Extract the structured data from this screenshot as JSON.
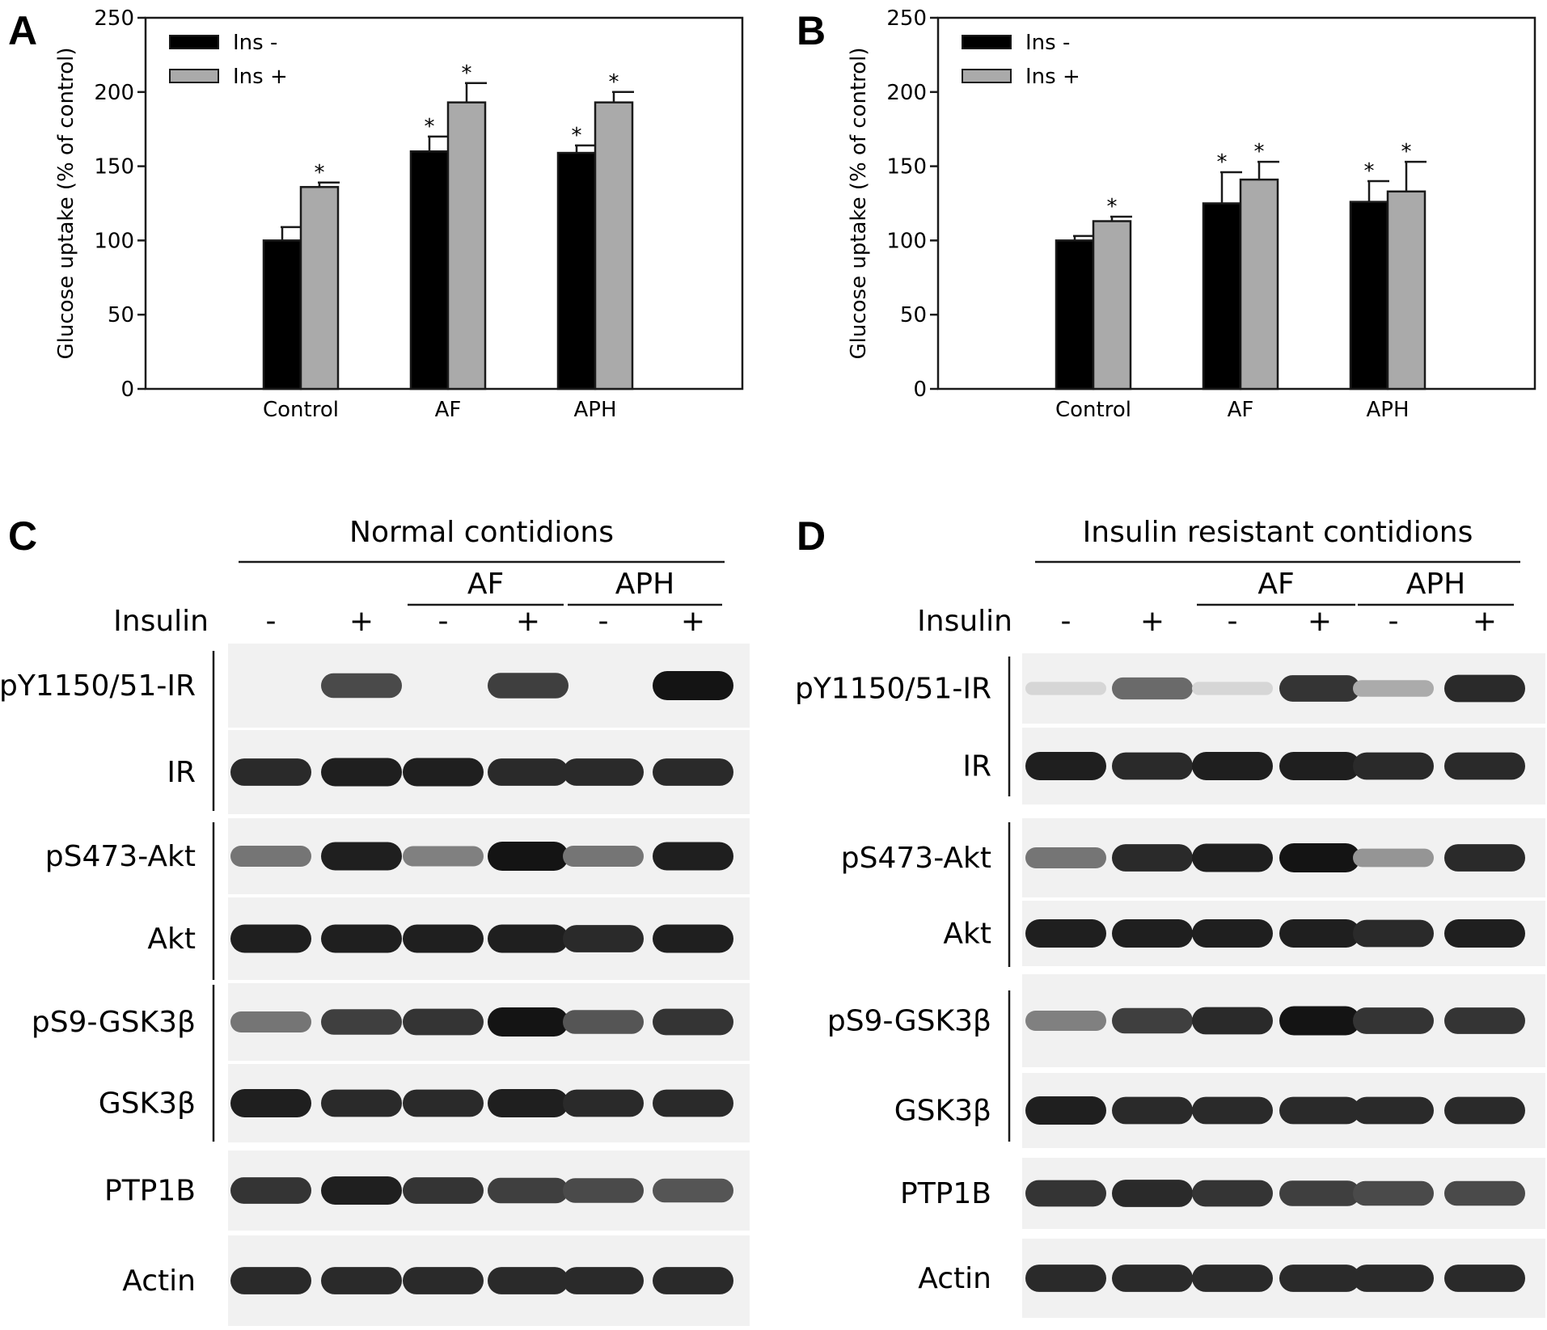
{
  "chart_data": [
    {
      "panel": "A",
      "type": "bar",
      "ylabel": "Glucose uptake (% of control)",
      "ylim": [
        0,
        250
      ],
      "yticks": [
        0,
        50,
        100,
        150,
        200,
        250
      ],
      "categories": [
        "Control",
        "AF",
        "APH"
      ],
      "series": [
        {
          "name": "Ins -",
          "color": "#000000",
          "values": [
            100,
            160,
            159
          ],
          "errors": [
            9,
            10,
            5
          ],
          "significant": [
            false,
            true,
            true
          ]
        },
        {
          "name": "Ins +",
          "color": "#aaaaaa",
          "values": [
            136,
            193,
            193
          ],
          "errors": [
            3,
            13,
            7
          ],
          "significant": [
            true,
            true,
            true
          ]
        }
      ],
      "legend": "top-left",
      "grid": false
    },
    {
      "panel": "B",
      "type": "bar",
      "ylabel": "Glucose uptake (% of control)",
      "ylim": [
        0,
        250
      ],
      "yticks": [
        0,
        50,
        100,
        150,
        200,
        250
      ],
      "categories": [
        "Control",
        "AF",
        "APH"
      ],
      "series": [
        {
          "name": "Ins -",
          "color": "#000000",
          "values": [
            100,
            125,
            126
          ],
          "errors": [
            3,
            21,
            14
          ],
          "significant": [
            false,
            true,
            true
          ]
        },
        {
          "name": "Ins +",
          "color": "#aaaaaa",
          "values": [
            113,
            141,
            133
          ],
          "errors": [
            3,
            12,
            20
          ],
          "significant": [
            true,
            true,
            true
          ]
        }
      ],
      "legend": "top-left",
      "grid": false
    }
  ],
  "significance_marker": "*",
  "blots": [
    {
      "panel": "C",
      "title": "Normal contidions",
      "insulin_label": "Insulin",
      "groups": [
        "AF",
        "APH"
      ],
      "lane_signs": [
        "-",
        "+",
        "-",
        "+",
        "-",
        "+"
      ],
      "rows": [
        {
          "label": "pY1150/51-IR",
          "intensity": [
            0,
            0.75,
            0,
            0.8,
            0,
            1
          ]
        },
        {
          "label": "IR",
          "intensity": [
            0.9,
            0.95,
            0.95,
            0.9,
            0.9,
            0.9
          ]
        },
        {
          "label": "pS473-Akt",
          "intensity": [
            0.55,
            0.95,
            0.5,
            1,
            0.55,
            0.95
          ]
        },
        {
          "label": "Akt",
          "intensity": [
            0.95,
            0.95,
            0.95,
            0.95,
            0.9,
            0.95
          ]
        },
        {
          "label": "pS9-GSK3β",
          "intensity": [
            0.55,
            0.8,
            0.85,
            1,
            0.7,
            0.85
          ]
        },
        {
          "label": "GSK3β",
          "intensity": [
            0.95,
            0.9,
            0.9,
            0.95,
            0.9,
            0.9
          ]
        },
        {
          "label": "PTP1B",
          "intensity": [
            0.85,
            0.95,
            0.85,
            0.8,
            0.75,
            0.7
          ]
        },
        {
          "label": "Actin",
          "intensity": [
            0.9,
            0.9,
            0.9,
            0.9,
            0.9,
            0.9
          ]
        }
      ]
    },
    {
      "panel": "D",
      "title": "Insulin resistant contidions",
      "insulin_label": "Insulin",
      "groups": [
        "AF",
        "APH"
      ],
      "lane_signs": [
        "-",
        "+",
        "-",
        "+",
        "-",
        "+"
      ],
      "rows": [
        {
          "label": "pY1150/51-IR",
          "intensity": [
            0.1,
            0.6,
            0.1,
            0.85,
            0.3,
            0.9
          ]
        },
        {
          "label": "IR",
          "intensity": [
            0.95,
            0.9,
            0.95,
            0.95,
            0.9,
            0.9
          ]
        },
        {
          "label": "pS473-Akt",
          "intensity": [
            0.55,
            0.9,
            0.95,
            1,
            0.4,
            0.9
          ]
        },
        {
          "label": "Akt",
          "intensity": [
            0.95,
            0.95,
            0.95,
            0.95,
            0.9,
            0.95
          ]
        },
        {
          "label": "pS9-GSK3β",
          "intensity": [
            0.5,
            0.8,
            0.9,
            1,
            0.85,
            0.85
          ]
        },
        {
          "label": "GSK3β",
          "intensity": [
            0.95,
            0.9,
            0.9,
            0.9,
            0.9,
            0.9
          ]
        },
        {
          "label": "PTP1B",
          "intensity": [
            0.85,
            0.9,
            0.85,
            0.8,
            0.75,
            0.75
          ]
        },
        {
          "label": "Actin",
          "intensity": [
            0.9,
            0.9,
            0.9,
            0.9,
            0.9,
            0.9
          ]
        }
      ]
    }
  ]
}
